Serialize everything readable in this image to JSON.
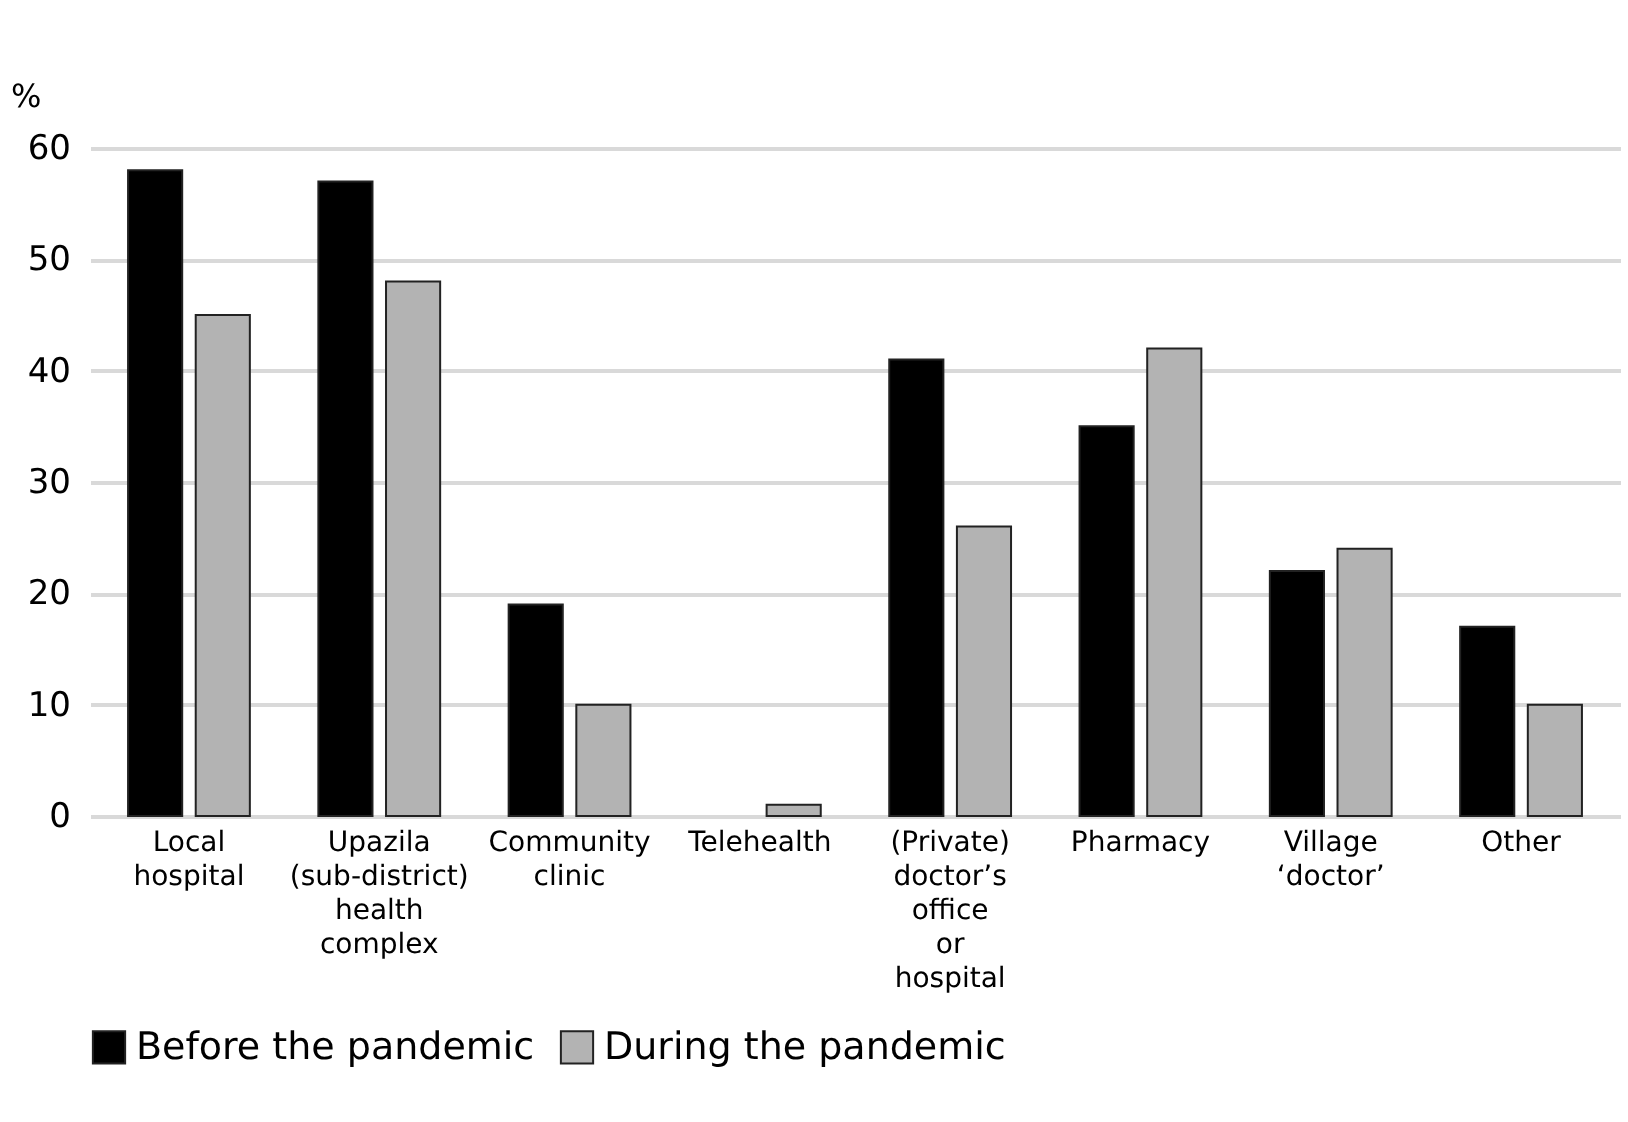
{
  "chart_data": {
    "type": "bar",
    "ylabel": "%",
    "categories": [
      "Local hospital",
      "Upazila (sub-district) health complex",
      "Community clinic",
      "Telehealth",
      "(Private) doctor’s office or hospital",
      "Pharmacy",
      "Village ‘doctor’",
      "Other"
    ],
    "series": [
      {
        "name": "Before the pandemic",
        "color": "#000000",
        "values": [
          58,
          57,
          19,
          0,
          41,
          35,
          22,
          17
        ]
      },
      {
        "name": "During the pandemic",
        "color": "#b3b3b3",
        "values": [
          45,
          48,
          10,
          1,
          26,
          42,
          24,
          10
        ]
      }
    ],
    "ylim": [
      0,
      60
    ],
    "yticks": [
      0,
      10,
      20,
      30,
      40,
      50,
      60
    ],
    "grid": "y",
    "legend": "bottom"
  }
}
